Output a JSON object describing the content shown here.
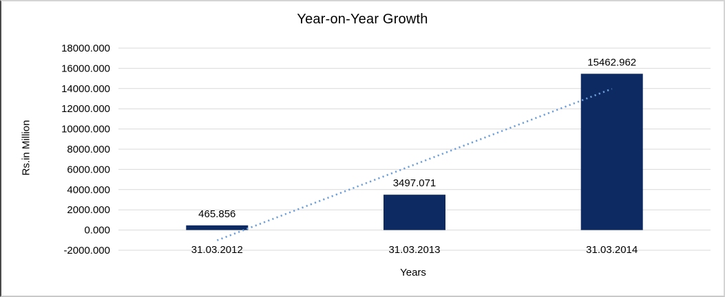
{
  "chart_data": {
    "type": "bar",
    "title": "Year-on-Year Growth",
    "xlabel": "Years",
    "ylabel": "Rs.in Million",
    "categories": [
      "31.03.2012",
      "31.03.2013",
      "31.03.2014"
    ],
    "values": [
      465.856,
      3497.071,
      15462.962
    ],
    "data_labels": [
      "465.856",
      "3497.071",
      "15462.962"
    ],
    "ylim": [
      -2000,
      18000
    ],
    "ytick_step": 2000,
    "ytick_labels": [
      "18000.000",
      "16000.000",
      "14000.000",
      "12000.000",
      "10000.000",
      "8000.000",
      "6000.000",
      "4000.000",
      "2000.000",
      "0.000",
      "-2000.000"
    ],
    "grid": "horizontal",
    "legend": "none",
    "trendline": {
      "type": "linear",
      "style": "dotted"
    },
    "colors": {
      "bar": "#0d2a63",
      "trendline": "#6f9fd8",
      "gridline": "#d9d9d9",
      "text": "#000000"
    }
  }
}
